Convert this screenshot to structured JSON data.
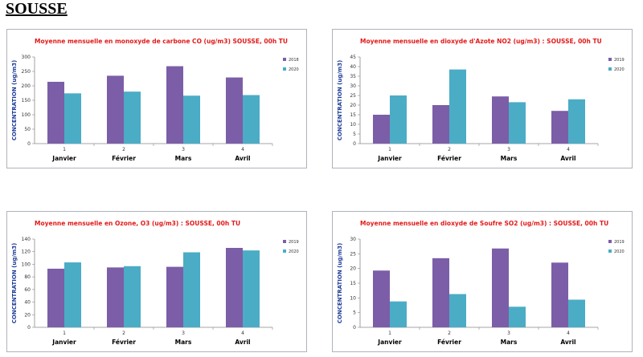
{
  "page": {
    "title": "SOUSSE"
  },
  "colors": {
    "series_2019": "#7b5ea7",
    "series_2020": "#4bacc6"
  },
  "chart_data": [
    {
      "type": "bar",
      "title": "Moyenne mensuelle en monoxyde de carbone CO (ug/m3) SOUSSE, 00h TU",
      "ylabel": "CONCENTRATION (ug/m3)",
      "xlabel": "",
      "categories": [
        "1",
        "2",
        "3",
        "4"
      ],
      "months": [
        "Janvier",
        "Février",
        "Mars",
        "Avril"
      ],
      "ylim": [
        0,
        300
      ],
      "yticks": [
        0,
        50,
        100,
        150,
        200,
        250,
        300
      ],
      "series": [
        {
          "name": "2018",
          "values": [
            214,
            235,
            268,
            229
          ]
        },
        {
          "name": "2020",
          "values": [
            174,
            180,
            166,
            168
          ]
        }
      ],
      "legend": "right",
      "grid": false
    },
    {
      "type": "bar",
      "title": "Moyenne mensuelle en dioxyde d'Azote NO2 (ug/m3) : SOUSSE, 00h TU",
      "ylabel": "CONCENTRATION (ug/m3)",
      "xlabel": "",
      "categories": [
        "1",
        "2",
        "3",
        "4"
      ],
      "months": [
        "Janvier",
        "Février",
        "Mars",
        "Avril"
      ],
      "ylim": [
        0,
        45
      ],
      "yticks": [
        0,
        5,
        10,
        15,
        20,
        25,
        30,
        35,
        40,
        45
      ],
      "series": [
        {
          "name": "2019",
          "values": [
            15,
            20,
            24.5,
            17
          ]
        },
        {
          "name": "2020",
          "values": [
            25,
            38.5,
            21.5,
            23
          ]
        }
      ],
      "legend": "right",
      "grid": false
    },
    {
      "type": "bar",
      "title": "Moyenne mensuelle en Ozone, O3 (ug/m3) : SOUSSE, 00h TU",
      "ylabel": "CONCENTRATION (ug/m3)",
      "xlabel": "",
      "categories": [
        "1",
        "2",
        "3",
        "4"
      ],
      "months": [
        "Janvier",
        "Février",
        "Mars",
        "Avril"
      ],
      "ylim": [
        0,
        140
      ],
      "yticks": [
        0,
        20,
        40,
        60,
        80,
        100,
        120,
        140
      ],
      "series": [
        {
          "name": "2019",
          "values": [
            93,
            95,
            96,
            126
          ]
        },
        {
          "name": "2020",
          "values": [
            103,
            97,
            119,
            122
          ]
        }
      ],
      "legend": "right",
      "grid": false
    },
    {
      "type": "bar",
      "title": "Moyenne mensuelle en dioxyde de Soufre SO2 (ug/m3) : SOUSSE, 00h TU",
      "ylabel": "CONCENTRATION (ug/m3)",
      "xlabel": "",
      "categories": [
        "1",
        "2",
        "3",
        "4"
      ],
      "months": [
        "Janvier",
        "Février",
        "Mars",
        "Avril"
      ],
      "ylim": [
        0,
        30
      ],
      "yticks": [
        0,
        5,
        10,
        15,
        20,
        25,
        30
      ],
      "series": [
        {
          "name": "2019",
          "values": [
            19.3,
            23.5,
            26.8,
            22
          ]
        },
        {
          "name": "2020",
          "values": [
            8.8,
            11.3,
            7,
            9.4
          ]
        }
      ],
      "legend": "right",
      "grid": false
    }
  ]
}
